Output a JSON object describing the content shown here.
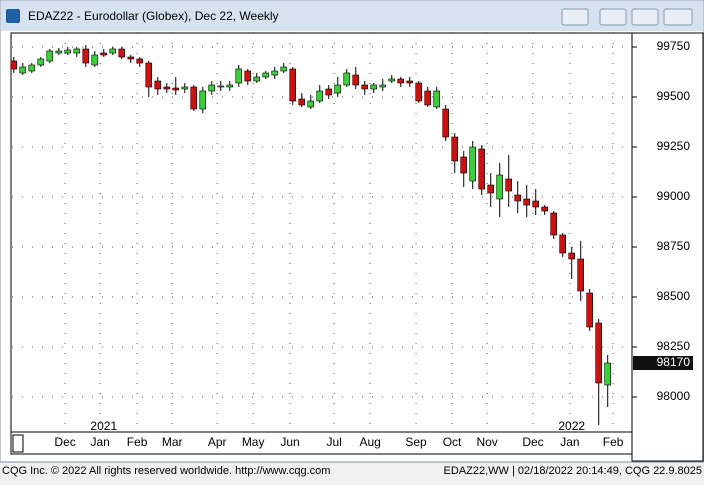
{
  "chart_data": {
    "type": "candlestick",
    "title": "EDAZ22 - Eurodollar (Globex), Dec 22, Weekly",
    "open": [
      99680,
      99620,
      99630,
      99660,
      99680,
      99720,
      99720,
      99720,
      99740,
      99660,
      99720,
      99720,
      99740,
      99700,
      99690,
      99670,
      99580,
      99550,
      99545,
      99540,
      99550,
      99440,
      99530,
      99550,
      99550,
      99570,
      99630,
      99580,
      99600,
      99610,
      99630,
      99640,
      99490,
      99450,
      99480,
      99540,
      99520,
      99560,
      99610,
      99560,
      99540,
      99550,
      99580,
      99590,
      99580,
      99570,
      99530,
      99450,
      99440,
      99300,
      99200,
      99080,
      99240,
      99060,
      98990,
      99090,
      99010,
      98990,
      98980,
      98950,
      98920,
      98810,
      98720,
      98690,
      98520,
      98370,
      98060
    ],
    "high": [
      99700,
      99670,
      99670,
      99700,
      99740,
      99745,
      99750,
      99750,
      99760,
      99730,
      99740,
      99750,
      99750,
      99710,
      99700,
      99680,
      99600,
      99570,
      99600,
      99570,
      99560,
      99550,
      99580,
      99580,
      99580,
      99660,
      99640,
      99620,
      99630,
      99650,
      99670,
      99650,
      99520,
      99510,
      99560,
      99560,
      99600,
      99640,
      99650,
      99580,
      99570,
      99590,
      99610,
      99600,
      99600,
      99580,
      99550,
      99550,
      99460,
      99320,
      99230,
      99280,
      99260,
      99120,
      99170,
      99210,
      99080,
      99060,
      99040,
      98960,
      98930,
      98820,
      98750,
      98780,
      98540,
      98390,
      98210
    ],
    "low": [
      99620,
      99610,
      99620,
      99650,
      99670,
      99710,
      99710,
      99700,
      99650,
      99650,
      99700,
      99710,
      99690,
      99670,
      99650,
      99500,
      99510,
      99520,
      99510,
      99520,
      99430,
      99420,
      99510,
      99530,
      99530,
      99550,
      99560,
      99570,
      99590,
      99590,
      99620,
      99460,
      99450,
      99440,
      99470,
      99490,
      99500,
      99550,
      99540,
      99510,
      99520,
      99530,
      99570,
      99550,
      99550,
      99470,
      99450,
      99440,
      99280,
      99120,
      99050,
      99040,
      99010,
      98950,
      98900,
      98950,
      98920,
      98900,
      98910,
      98910,
      98790,
      98700,
      98590,
      98480,
      98330,
      97860,
      97950
    ],
    "close": [
      99640,
      99650,
      99660,
      99690,
      99730,
      99730,
      99735,
      99740,
      99670,
      99710,
      99710,
      99740,
      99700,
      99690,
      99670,
      99550,
      99540,
      99540,
      99535,
      99550,
      99440,
      99530,
      99560,
      99555,
      99560,
      99640,
      99580,
      99600,
      99620,
      99630,
      99650,
      99480,
      99460,
      99480,
      99530,
      99510,
      99560,
      99620,
      99560,
      99540,
      99560,
      99560,
      99590,
      99570,
      99570,
      99480,
      99460,
      99530,
      99300,
      99180,
      99120,
      99250,
      99040,
      99020,
      99110,
      99030,
      98980,
      98960,
      98950,
      98930,
      98810,
      98720,
      98690,
      98530,
      98350,
      98070,
      98170
    ],
    "up_color": "#3ccf3c",
    "down_color": "#cc1111",
    "xlim": [
      -0.2,
      68.7
    ],
    "ylim": [
      97825,
      99820
    ],
    "yticks": [
      98000,
      98250,
      98500,
      98750,
      99000,
      99250,
      99500,
      99750
    ],
    "xticks": [
      {
        "value": 5.7,
        "label": "Dec"
      },
      {
        "value": 9.6,
        "label": "Jan"
      },
      {
        "value": 13.7,
        "label": "Feb"
      },
      {
        "value": 17.6,
        "label": "Mar"
      },
      {
        "value": 22.6,
        "label": "Apr"
      },
      {
        "value": 26.6,
        "label": "May"
      },
      {
        "value": 30.7,
        "label": "Jun"
      },
      {
        "value": 35.6,
        "label": "Jul"
      },
      {
        "value": 39.6,
        "label": "Aug"
      },
      {
        "value": 44.7,
        "label": "Sep"
      },
      {
        "value": 48.7,
        "label": "Oct"
      },
      {
        "value": 52.6,
        "label": "Nov"
      },
      {
        "value": 57.7,
        "label": "Dec"
      },
      {
        "value": 61.8,
        "label": "Jan"
      },
      {
        "value": 66.6,
        "label": "Feb"
      }
    ],
    "year_labels": [
      {
        "value": 10,
        "label": "2021"
      },
      {
        "value": 62,
        "label": "2022"
      }
    ],
    "grid": true
  },
  "footer": {
    "left": "CQG Inc. © 2022 All rights reserved worldwide. http://www.cqg.com",
    "right": "EDAZ22,WW | 02/18/2022 20:14:49, CQG 22.9.8025"
  }
}
